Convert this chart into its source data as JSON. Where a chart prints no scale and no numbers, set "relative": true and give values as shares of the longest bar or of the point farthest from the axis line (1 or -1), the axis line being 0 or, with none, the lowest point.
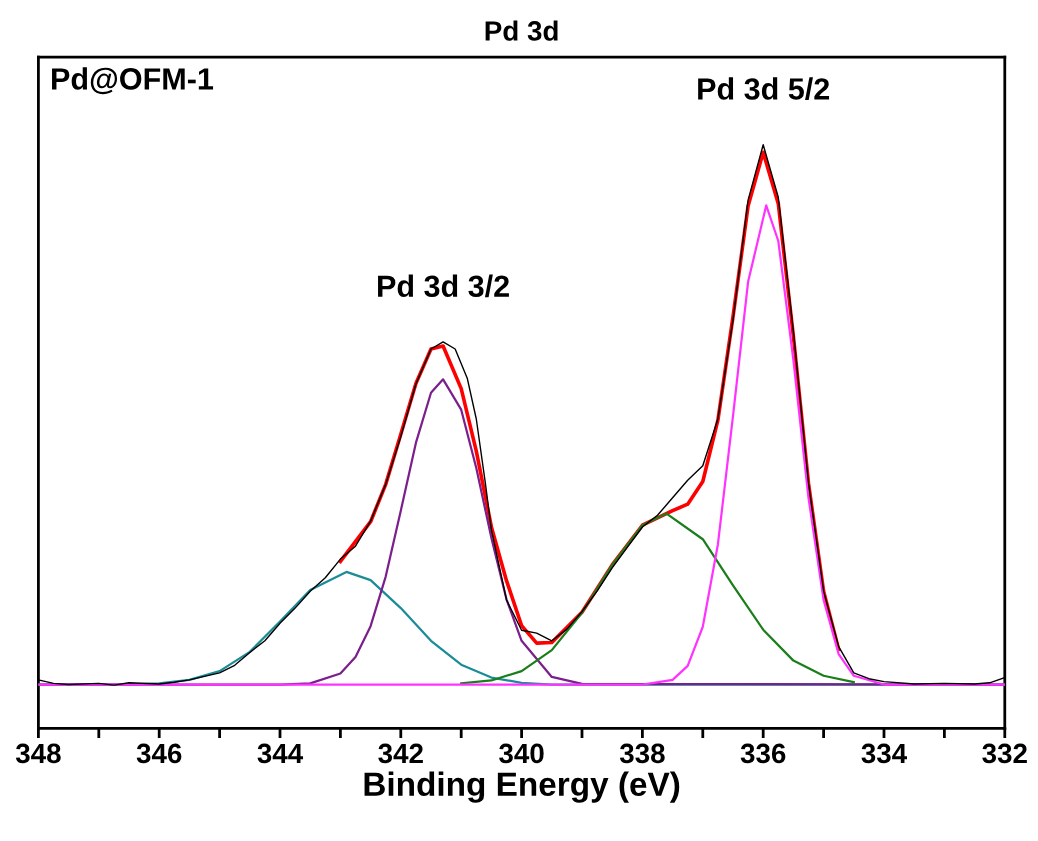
{
  "chart_data": {
    "type": "line",
    "title": "Pd 3d",
    "xlabel": "Binding Energy (eV)",
    "relative": true,
    "xlim": [
      348,
      332
    ],
    "xticks": [
      348,
      {
        "value": 347,
        "label": null
      },
      346,
      {
        "value": 345,
        "label": null
      },
      344,
      {
        "value": 343,
        "label": null
      },
      342,
      {
        "value": 341,
        "label": null
      },
      340,
      {
        "value": 339,
        "label": null
      },
      338,
      {
        "value": 337,
        "label": null
      },
      336,
      {
        "value": 335,
        "label": null
      },
      334,
      {
        "value": 333,
        "label": null
      },
      332
    ],
    "grid": false,
    "marker": "none",
    "line_style": "solid",
    "annotations": [
      "Pd@OFM-1",
      {
        "text": "Pd 3d 3/2",
        "x": 341.3,
        "y": 0.662
      },
      {
        "text": "Pd 3d 5/2",
        "x": 336.0,
        "y": 1.0
      }
    ],
    "series": [
      {
        "color": "#000000",
        "x": [
          348,
          347.75,
          347.5,
          347,
          346.75,
          346.5,
          346,
          345.75,
          345.5,
          345,
          344.75,
          344.5,
          344.25,
          344,
          343.75,
          343.5,
          343.25,
          343,
          342.75,
          342.5,
          342.25,
          342,
          341.75,
          341.5,
          341.3,
          341.1,
          340.9,
          340.75,
          340.6,
          340.5,
          340.25,
          340,
          339.75,
          339.5,
          339.25,
          339,
          338.75,
          338.5,
          338.25,
          338,
          337.75,
          337.5,
          337.25,
          337,
          336.75,
          336.5,
          336.25,
          336,
          335.75,
          335.5,
          335.25,
          335,
          334.75,
          334.5,
          334.25,
          334,
          333.5,
          333,
          332.5,
          332.25,
          332
        ],
        "values": [
          0.083,
          0.077,
          0.075,
          0.077,
          0.074,
          0.078,
          0.076,
          0.079,
          0.083,
          0.095,
          0.108,
          0.13,
          0.15,
          0.18,
          0.206,
          0.235,
          0.258,
          0.29,
          0.312,
          0.355,
          0.418,
          0.5,
          0.59,
          0.65,
          0.662,
          0.65,
          0.6,
          0.53,
          0.42,
          0.34,
          0.22,
          0.168,
          0.163,
          0.15,
          0.17,
          0.2,
          0.235,
          0.275,
          0.31,
          0.345,
          0.365,
          0.395,
          0.425,
          0.45,
          0.53,
          0.7,
          0.905,
          1.0,
          0.91,
          0.68,
          0.42,
          0.235,
          0.14,
          0.095,
          0.085,
          0.08,
          0.076,
          0.077,
          0.076,
          0.078,
          0.087
        ]
      },
      {
        "color": "#ff0000",
        "x": [
          343,
          342.5,
          342.25,
          342,
          341.75,
          341.5,
          341.3,
          341,
          340.75,
          340.5,
          340.25,
          340,
          339.75,
          339.5,
          339,
          338.5,
          338,
          337.5,
          337.25,
          337,
          336.75,
          336.5,
          336.25,
          336,
          335.75,
          335.5,
          335.25,
          335,
          334.75
        ],
        "values": [
          0.286,
          0.354,
          0.418,
          0.504,
          0.591,
          0.65,
          0.655,
          0.582,
          0.475,
          0.345,
          0.253,
          0.176,
          0.146,
          0.147,
          0.199,
          0.28,
          0.348,
          0.373,
          0.384,
          0.423,
          0.528,
          0.705,
          0.895,
          0.987,
          0.899,
          0.672,
          0.42,
          0.235,
          0.135
        ]
      },
      {
        "color": "#1a8c96",
        "x": [
          348,
          346.5,
          346,
          345.5,
          345,
          344.5,
          344,
          343.5,
          342.9,
          342.5,
          342,
          341.5,
          341,
          340.5,
          340,
          339.5,
          332
        ],
        "values": [
          0.075,
          0.075,
          0.077,
          0.083,
          0.098,
          0.131,
          0.183,
          0.237,
          0.268,
          0.254,
          0.206,
          0.15,
          0.109,
          0.087,
          0.078,
          0.075,
          0.075
        ]
      },
      {
        "color": "#7b1f8c",
        "x": [
          348,
          344,
          343.5,
          343,
          342.75,
          342.5,
          342.25,
          342,
          341.75,
          341.5,
          341.3,
          341,
          340.75,
          340.5,
          340.25,
          340,
          339.5,
          339,
          332
        ],
        "values": [
          0.075,
          0.075,
          0.077,
          0.094,
          0.122,
          0.175,
          0.26,
          0.373,
          0.489,
          0.575,
          0.598,
          0.546,
          0.446,
          0.326,
          0.221,
          0.15,
          0.088,
          0.076,
          0.075
        ]
      },
      {
        "color": "#1a7f1a",
        "x": [
          341,
          340.5,
          340,
          339.5,
          339,
          338.5,
          338,
          337.6,
          337,
          336.5,
          336,
          335.5,
          335,
          334.5
        ],
        "values": [
          0.077,
          0.082,
          0.098,
          0.134,
          0.198,
          0.28,
          0.348,
          0.368,
          0.324,
          0.245,
          0.169,
          0.116,
          0.09,
          0.079
        ]
      },
      {
        "color": "#ff33ff",
        "x": [
          348,
          338,
          337.5,
          337.25,
          337,
          336.75,
          336.5,
          336.25,
          335.95,
          335.75,
          335.5,
          335.25,
          335,
          334.75,
          334.5,
          334,
          332
        ],
        "values": [
          0.075,
          0.075,
          0.083,
          0.107,
          0.174,
          0.315,
          0.535,
          0.765,
          0.896,
          0.835,
          0.631,
          0.395,
          0.22,
          0.127,
          0.09,
          0.075,
          0.075
        ]
      }
    ]
  }
}
